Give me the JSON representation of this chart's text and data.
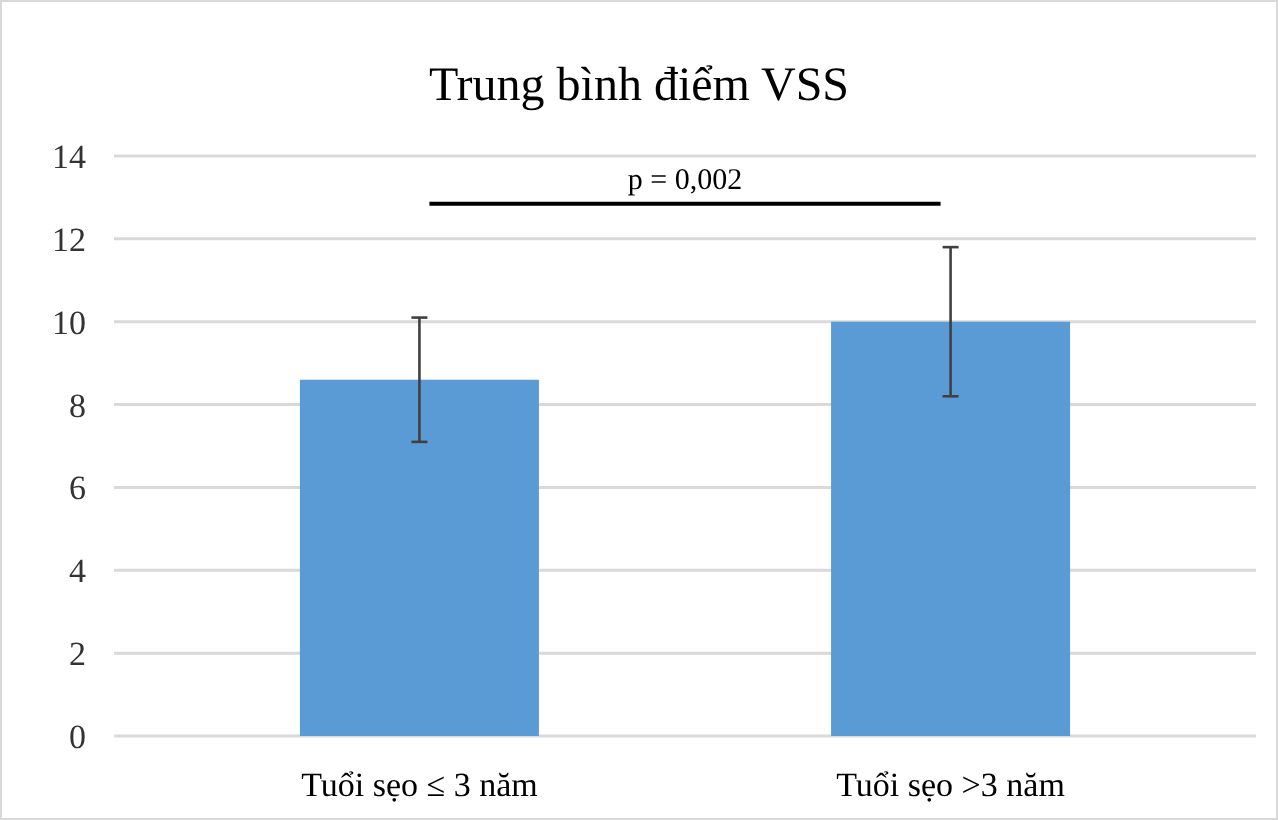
{
  "chart_data": {
    "type": "bar",
    "title": "Trung bình điểm VSS",
    "categories": [
      "Tuổi sẹo ≤ 3 năm",
      "Tuổi sẹo >3 năm"
    ],
    "values": [
      8.6,
      10
    ],
    "errors": [
      1.5,
      1.8
    ],
    "color": "#5b9bd5",
    "ylim": [
      0,
      14
    ],
    "yticks": [
      0,
      2,
      4,
      6,
      8,
      10,
      12,
      14
    ],
    "grid": "y",
    "annotations": [
      "p = 0,002"
    ]
  }
}
